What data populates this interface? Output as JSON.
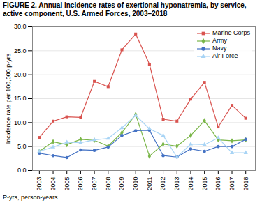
{
  "chart_data": {
    "type": "line",
    "title": "FIGURE 2. Annual incidence rates of exertional hyponatremia, by service, active component, U.S. Armed Forces, 2003–2018",
    "annotations": [
      "P-yrs, person-years"
    ],
    "ylabel": "Incidence rate per 100,000 p-yrs",
    "x": [
      2003,
      2004,
      2005,
      2006,
      2007,
      2008,
      2009,
      2010,
      2011,
      2012,
      2013,
      2014,
      2015,
      2016,
      2017,
      2018
    ],
    "series": [
      {
        "name": "Marine Corps",
        "color": "#d9534f",
        "marker": "square",
        "values": [
          6.9,
          10.3,
          11.2,
          11.1,
          18.6,
          17.5,
          25.2,
          28.5,
          22.2,
          10.7,
          10.3,
          14.9,
          18.4,
          9.1,
          13.6,
          10.9
        ]
      },
      {
        "name": "Army",
        "color": "#7ab648",
        "marker": "diamond",
        "values": [
          4.0,
          6.0,
          5.4,
          6.5,
          6.3,
          5.1,
          7.9,
          11.7,
          3.0,
          5.5,
          5.1,
          7.3,
          10.4,
          6.4,
          6.2,
          6.4
        ]
      },
      {
        "name": "Navy",
        "color": "#4472c4",
        "marker": "circle",
        "values": [
          3.6,
          3.1,
          2.7,
          4.3,
          4.2,
          4.9,
          7.3,
          8.3,
          8.4,
          3.1,
          2.8,
          4.5,
          4.0,
          5.0,
          5.0,
          6.5
        ]
      },
      {
        "name": "Air Force",
        "color": "#a8d4f5",
        "marker": "triangle",
        "values": [
          4.0,
          4.9,
          5.9,
          5.8,
          6.4,
          6.7,
          8.9,
          11.5,
          8.7,
          7.3,
          2.8,
          5.5,
          5.4,
          6.8,
          3.7,
          3.7
        ]
      }
    ],
    "xlim": [
      2002.5,
      2018.7
    ],
    "xticks": [
      2003,
      2004,
      2005,
      2006,
      2007,
      2008,
      2009,
      2010,
      2011,
      2012,
      2013,
      2014,
      2015,
      2016,
      2017,
      2018
    ],
    "ylim": [
      0,
      30
    ],
    "yticks": [
      {
        "value": 0,
        "label": "0.0"
      },
      {
        "value": 5,
        "label": "5.0"
      },
      {
        "value": 10,
        "label": "10.0"
      },
      {
        "value": 15,
        "label": "15.0"
      },
      {
        "value": 20,
        "label": "20.0"
      },
      {
        "value": 25,
        "label": "25.0"
      },
      {
        "value": 30,
        "label": "30.0"
      }
    ],
    "grid": true,
    "legend": "upper right"
  }
}
